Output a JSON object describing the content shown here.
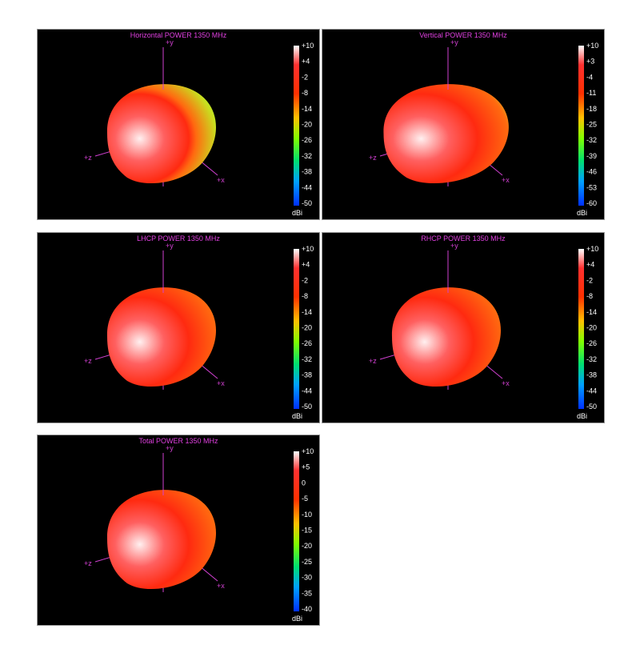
{
  "panels": [
    {
      "title": "Horizontal POWER 1350  MHz",
      "unit": "dBi",
      "axes": {
        "x": "+x",
        "y": "+y",
        "z": "+z"
      },
      "scale": [
        "+10",
        "+4",
        "-2",
        "-8",
        "-14",
        "-20",
        "-26",
        "-32",
        "-38",
        "-44",
        "-50"
      ]
    },
    {
      "title": "Vertical POWER 1350  MHz",
      "unit": "dBi",
      "axes": {
        "x": "+x",
        "y": "+y",
        "z": "+z"
      },
      "scale": [
        "+10",
        "+3",
        "-4",
        "-11",
        "-18",
        "-25",
        "-32",
        "-39",
        "-46",
        "-53",
        "-60"
      ]
    },
    {
      "title": "LHCP POWER 1350  MHz",
      "unit": "dBi",
      "axes": {
        "x": "+x",
        "y": "+y",
        "z": "+z"
      },
      "scale": [
        "+10",
        "+4",
        "-2",
        "-8",
        "-14",
        "-20",
        "-26",
        "-32",
        "-38",
        "-44",
        "-50"
      ]
    },
    {
      "title": "RHCP POWER 1350  MHz",
      "unit": "dBi",
      "axes": {
        "x": "+x",
        "y": "+y",
        "z": "+z"
      },
      "scale": [
        "+10",
        "+4",
        "-2",
        "-8",
        "-14",
        "-20",
        "-26",
        "-32",
        "-38",
        "-44",
        "-50"
      ]
    },
    {
      "title": "Total POWER 1350  MHz",
      "unit": "dBi",
      "axes": {
        "x": "+x",
        "y": "+y",
        "z": "+z"
      },
      "scale": [
        "+10",
        "+5",
        "0",
        "-5",
        "-10",
        "-15",
        "-20",
        "-25",
        "-30",
        "-35",
        "-40"
      ]
    }
  ]
}
